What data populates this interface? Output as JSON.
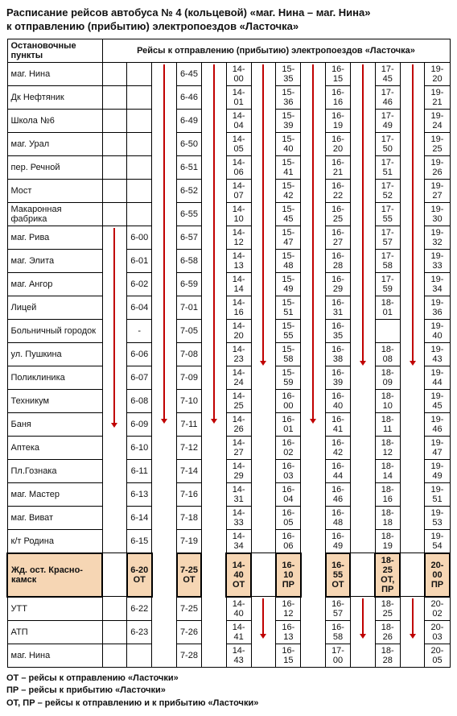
{
  "title_line1": "Расписание рейсов автобуса № 4 (кольцевой) «маг. Нина – маг. Нина»",
  "title_line2": "к отправлению (прибытию) электропоездов «Ласточка»",
  "header_stops": "Остановочные пункты",
  "header_trips": "Рейсы к отправлению (прибытию) электропоездов «Ласточка»",
  "colors": {
    "highlight_bg": "#f6d6b4",
    "arrow": "#c00000"
  },
  "stops": [
    "маг. Нина",
    "Дк Нефтяник",
    "Школа №6",
    "маг. Урал",
    "пер. Речной",
    "Мост",
    "Макаронная фабрика",
    "маг. Рива",
    "маг. Элита",
    "маг. Ангор",
    "Лицей",
    "Больничный городок",
    "ул. Пушкина",
    "Поликлиника",
    "Техникум",
    "Баня",
    "Аптека",
    "Пл.Гознака",
    "маг. Мастер",
    "маг. Виват",
    "к/т Родина",
    "Жд. ост. Красно-камск",
    "УТТ",
    "АТП",
    "маг. Нина"
  ],
  "cols": [
    [
      "",
      "",
      "",
      "",
      "",
      "",
      "",
      "6-00",
      "6-01",
      "6-02",
      "6-04",
      "-",
      "6-06",
      "6-07",
      "6-08",
      "6-09",
      "6-10",
      "6-11",
      "6-13",
      "6-14",
      "6-15",
      "6-20 ОТ",
      "6-22",
      "6-23",
      ""
    ],
    [
      "6-45",
      "6-46",
      "6-49",
      "6-50",
      "6-51",
      "6-52",
      "6-55",
      "6-57",
      "6-58",
      "6-59",
      "7-01",
      "7-05",
      "7-08",
      "7-09",
      "7-10",
      "7-11",
      "7-12",
      "7-14",
      "7-16",
      "7-18",
      "7-19",
      "7-25 ОТ",
      "7-25",
      "7-26",
      "7-28"
    ],
    [
      "14-00",
      "14-01",
      "14-04",
      "14-05",
      "14-06",
      "14-07",
      "14-10",
      "14-12",
      "14-13",
      "14-14",
      "14-16",
      "14-20",
      "14-23",
      "14-24",
      "14-25",
      "14-26",
      "14-27",
      "14-29",
      "14-31",
      "14-33",
      "14-34",
      "14-40 ОТ",
      "14-40",
      "14-41",
      "14-43"
    ],
    [
      "15-35",
      "15-36",
      "15-39",
      "15-40",
      "15-41",
      "15-42",
      "15-45",
      "15-47",
      "15-48",
      "15-49",
      "15-51",
      "15-55",
      "15-58",
      "15-59",
      "16-00",
      "16-01",
      "16-02",
      "16-03",
      "16-04",
      "16-05",
      "16-06",
      "16-10 ПР",
      "16-12",
      "16-13",
      "16-15"
    ],
    [
      "16-15",
      "16-16",
      "16-19",
      "16-20",
      "16-21",
      "16-22",
      "16-25",
      "16-27",
      "16-28",
      "16-29",
      "16-31",
      "16-35",
      "16-38",
      "16-39",
      "16-40",
      "16-41",
      "16-42",
      "16-44",
      "16-46",
      "16-48",
      "16-49",
      "16-55 ОТ",
      "16-57",
      "16-58",
      "17-00"
    ],
    [
      "17-45",
      "17-46",
      "17-49",
      "17-50",
      "17-51",
      "17-52",
      "17-55",
      "17-57",
      "17-58",
      "17-59",
      "18-01",
      "",
      "18-08",
      "18-09",
      "18-10",
      "18-11",
      "18-12",
      "18-14",
      "18-16",
      "18-18",
      "18-19",
      "18-25 ОТ, ПР",
      "18-25",
      "18-26",
      "18-28"
    ],
    [
      "19-20",
      "19-21",
      "19-24",
      "19-25",
      "19-26",
      "19-27",
      "19-30",
      "19-32",
      "19-33",
      "19-34",
      "19-36",
      "19-40",
      "19-43",
      "19-44",
      "19-45",
      "19-46",
      "19-47",
      "19-49",
      "19-51",
      "19-53",
      "19-54",
      "20-00 ПР",
      "20-02",
      "20-03",
      "20-05"
    ]
  ],
  "arrows": [
    {
      "col": 0,
      "start": 7,
      "end": 20
    },
    {
      "col": 1,
      "start": 0,
      "end": 24
    },
    {
      "col": 2,
      "start": 0,
      "end": 24
    },
    {
      "col": 3,
      "start": 0,
      "end": 20
    },
    {
      "col": 3,
      "start": 22,
      "end": 24
    },
    {
      "col": 4,
      "start": 0,
      "end": 24
    },
    {
      "col": 5,
      "start": 0,
      "end": 20
    },
    {
      "col": 5,
      "start": 22,
      "end": 24
    },
    {
      "col": 6,
      "start": 0,
      "end": 20
    },
    {
      "col": 6,
      "start": 22,
      "end": 24
    }
  ],
  "highlight_row": 21,
  "legend": [
    "ОТ – рейсы к отправлению «Ласточки»",
    "ПР – рейсы к прибытию «Ласточки»",
    "ОТ, ПР – рейсы к отправлению и к прибытию «Ласточки»"
  ]
}
